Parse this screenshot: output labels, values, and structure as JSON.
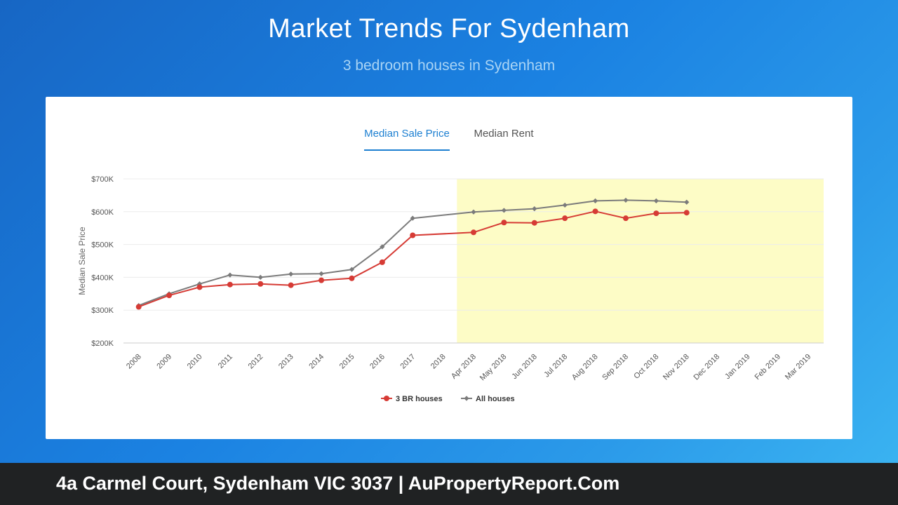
{
  "page": {
    "title": "Market Trends For Sydenham",
    "subtitle": "3 bedroom houses in Sydenham"
  },
  "tabs": [
    {
      "label": "Median Sale Price",
      "active": true
    },
    {
      "label": "Median Rent",
      "active": false
    }
  ],
  "footer": {
    "text": "4a Carmel Court, Sydenham VIC 3037 | AuPropertyReport.Com"
  },
  "colors": {
    "series_3br": "#d63b35",
    "series_all": "#7b7b7b",
    "highlight": "#fdfcc6",
    "accent": "#1c7fd1"
  },
  "chart_data": {
    "type": "line",
    "ylabel": "Median Sale Price",
    "ylim": [
      200000,
      700000
    ],
    "y_ticks": [
      200000,
      300000,
      400000,
      500000,
      600000,
      700000
    ],
    "y_tick_labels": [
      "$200K",
      "$300K",
      "$400K",
      "$500K",
      "$600K",
      "$700K"
    ],
    "categories": [
      "2008",
      "2009",
      "2010",
      "2011",
      "2012",
      "2013",
      "2014",
      "2015",
      "2016",
      "2017",
      "2018",
      "Apr 2018",
      "May 2018",
      "Jun 2018",
      "Jul 2018",
      "Aug 2018",
      "Sep 2018",
      "Oct 2018",
      "Nov 2018",
      "Dec 2018",
      "Jan 2019",
      "Feb 2019",
      "Mar 2019"
    ],
    "highlight_range": [
      "Apr 2018",
      "Mar 2019"
    ],
    "grid": true,
    "legend_position": "bottom",
    "series": [
      {
        "name": "3 BR houses",
        "color": "#d63b35",
        "marker": "circle",
        "values": [
          310000,
          345000,
          370000,
          378000,
          380000,
          376000,
          391000,
          397000,
          446000,
          528000,
          null,
          537000,
          567000,
          566000,
          580000,
          601000,
          580000,
          595000,
          597000,
          null,
          null,
          null,
          null
        ]
      },
      {
        "name": "All houses",
        "color": "#7b7b7b",
        "marker": "diamond",
        "values": [
          314000,
          350000,
          380000,
          407000,
          400000,
          410000,
          411000,
          424000,
          493000,
          580000,
          null,
          599000,
          604000,
          609000,
          620000,
          633000,
          635000,
          633000,
          629000,
          null,
          null,
          null,
          null
        ]
      }
    ]
  }
}
